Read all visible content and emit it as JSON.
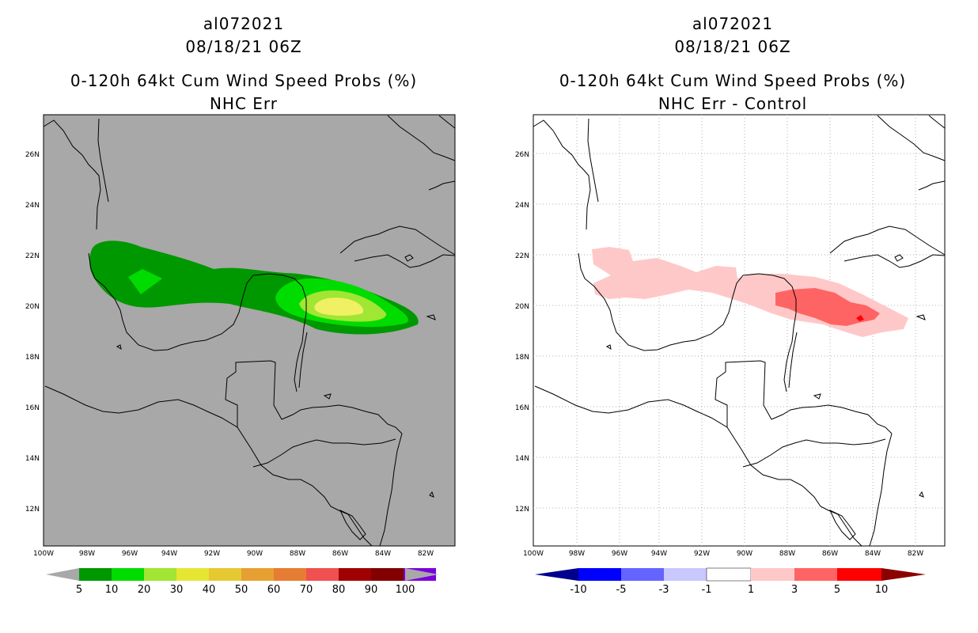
{
  "left_panel": {
    "title_line1": "al072021",
    "title_line2": "08/18/21 06Z",
    "title_line3": "0-120h 64kt Cum Wind Speed Probs (%)",
    "title_line4": "NHC Err",
    "background_color": "#a8a8a8",
    "colorbar_labels": [
      "5",
      "10",
      "20",
      "30",
      "40",
      "50",
      "60",
      "70",
      "80",
      "90",
      "100"
    ],
    "colorbar_colors": [
      "#009800",
      "#00dc00",
      "#a0e632",
      "#e6e632",
      "#e6c832",
      "#e6a032",
      "#e67d32",
      "#f05050",
      "#a00000",
      "#820000",
      "#7b00dc"
    ]
  },
  "right_panel": {
    "title_line1": "al072021",
    "title_line2": "08/18/21 06Z",
    "title_line3": "0-120h 64kt Cum Wind Speed Probs (%)",
    "title_line4": "NHC Err - Control",
    "background_color": "#ffffff",
    "colorbar_labels": [
      "-10",
      "-5",
      "-3",
      "-1",
      "1",
      "3",
      "5",
      "10"
    ],
    "colorbar_colors": [
      "#00008c",
      "#0000ff",
      "#6464ff",
      "#c8c8ff",
      "#ffffff",
      "#ffc8c8",
      "#ff6464",
      "#ff0000",
      "#8c0000"
    ]
  },
  "axes": {
    "lat_labels": [
      "26N",
      "24N",
      "22N",
      "20N",
      "18N",
      "16N",
      "14N",
      "12N"
    ],
    "lon_labels": [
      "100W",
      "98W",
      "96W",
      "94W",
      "92W",
      "90W",
      "88W",
      "86W",
      "84W",
      "82W"
    ]
  }
}
